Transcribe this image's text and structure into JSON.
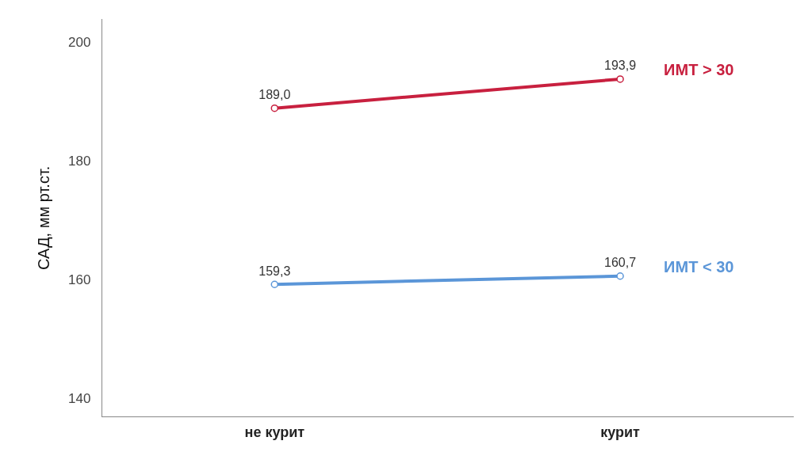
{
  "chart_data": {
    "type": "line",
    "ylabel": "САД, мм рт.ст.",
    "categories": [
      "не курит",
      "курит"
    ],
    "series": [
      {
        "name": "ИМТ > 30",
        "color": "#c8203f",
        "values": [
          189.0,
          193.9
        ],
        "value_labels": [
          "189,0",
          "193,9"
        ]
      },
      {
        "name": "ИМТ < 30",
        "color": "#5b96d8",
        "values": [
          159.3,
          160.7
        ],
        "value_labels": [
          "159,3",
          "160,7"
        ]
      }
    ],
    "ylim": [
      137,
      204
    ],
    "yticks": [
      140,
      160,
      180,
      200
    ],
    "grid": false,
    "legend": false,
    "marker": "circle"
  }
}
